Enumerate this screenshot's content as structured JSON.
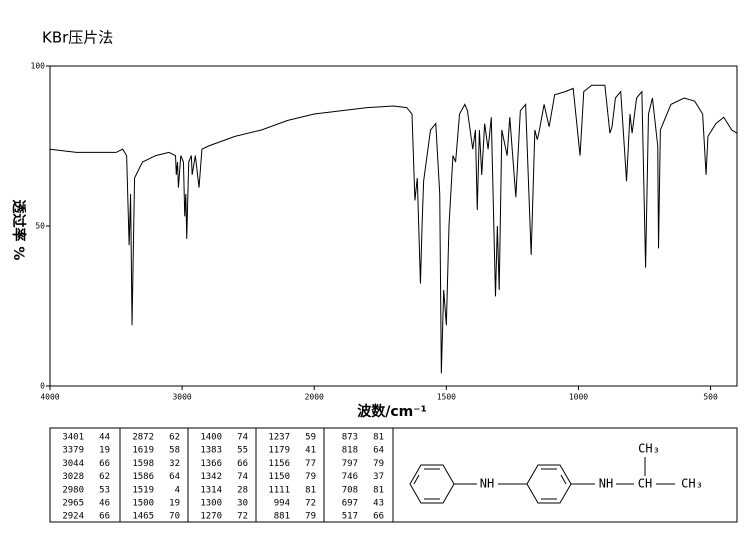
{
  "chart_data": {
    "type": "line",
    "title": "KBr压片法",
    "x_label": "波数/cm⁻¹",
    "y_label": "透过率 %",
    "xlim": [
      4000,
      400
    ],
    "xticks": [
      4000,
      3000,
      2000,
      1500,
      1000,
      500
    ],
    "ylim": [
      0,
      100
    ],
    "yticks": [
      0,
      50,
      100
    ],
    "color": "#000000",
    "x": [
      4000,
      3800,
      3600,
      3500,
      3450,
      3420,
      3401,
      3390,
      3379,
      3360,
      3300,
      3200,
      3100,
      3050,
      3044,
      3035,
      3028,
      3010,
      2990,
      2980,
      2972,
      2965,
      2950,
      2930,
      2924,
      2900,
      2872,
      2850,
      2800,
      2600,
      2400,
      2200,
      2000,
      1800,
      1700,
      1650,
      1630,
      1619,
      1610,
      1598,
      1592,
      1586,
      1560,
      1540,
      1525,
      1519,
      1510,
      1500,
      1490,
      1475,
      1465,
      1450,
      1430,
      1420,
      1400,
      1390,
      1383,
      1375,
      1366,
      1355,
      1342,
      1330,
      1314,
      1307,
      1300,
      1290,
      1270,
      1260,
      1237,
      1220,
      1200,
      1179,
      1165,
      1156,
      1150,
      1130,
      1111,
      1090,
      1050,
      1020,
      994,
      980,
      950,
      900,
      881,
      873,
      860,
      840,
      818,
      805,
      797,
      780,
      760,
      746,
      735,
      720,
      708,
      700,
      697,
      690,
      650,
      600,
      560,
      530,
      517,
      510,
      480,
      450,
      420,
      400
    ],
    "values": [
      74,
      73,
      73,
      73,
      74,
      72,
      44,
      60,
      19,
      65,
      70,
      72,
      73,
      72,
      66,
      70,
      62,
      72,
      70,
      53,
      60,
      46,
      70,
      72,
      66,
      72,
      62,
      74,
      75,
      78,
      80,
      83,
      85,
      87,
      87.5,
      87,
      85,
      58,
      65,
      32,
      50,
      64,
      80,
      82,
      60,
      4,
      30,
      19,
      50,
      72,
      70,
      85,
      88,
      86,
      74,
      80,
      55,
      80,
      66,
      82,
      74,
      84,
      28,
      50,
      30,
      80,
      72,
      84,
      59,
      86,
      88,
      41,
      80,
      77,
      79,
      88,
      81,
      91,
      92,
      93,
      72,
      92,
      94,
      94,
      79,
      81,
      90,
      92,
      64,
      85,
      79,
      90,
      92,
      37,
      85,
      90,
      81,
      75,
      43,
      80,
      88,
      90,
      89,
      85,
      66,
      78,
      82,
      84,
      80,
      79
    ]
  },
  "peak_table": [
    [
      [
        "3401",
        "44"
      ],
      [
        "3379",
        "19"
      ],
      [
        "3044",
        "66"
      ],
      [
        "3028",
        "62"
      ],
      [
        "2980",
        "53"
      ],
      [
        "2965",
        "46"
      ],
      [
        "2924",
        "66"
      ]
    ],
    [
      [
        "2872",
        "62"
      ],
      [
        "1619",
        "58"
      ],
      [
        "1598",
        "32"
      ],
      [
        "1586",
        "64"
      ],
      [
        "1519",
        "4"
      ],
      [
        "1500",
        "19"
      ],
      [
        "1465",
        "70"
      ]
    ],
    [
      [
        "1400",
        "74"
      ],
      [
        "1383",
        "55"
      ],
      [
        "1366",
        "66"
      ],
      [
        "1342",
        "74"
      ],
      [
        "1314",
        "28"
      ],
      [
        "1300",
        "30"
      ],
      [
        "1270",
        "72"
      ]
    ],
    [
      [
        "1237",
        "59"
      ],
      [
        "1179",
        "41"
      ],
      [
        "1156",
        "77"
      ],
      [
        "1150",
        "79"
      ],
      [
        "1111",
        "81"
      ],
      [
        "994",
        "72"
      ],
      [
        "881",
        "79"
      ]
    ],
    [
      [
        "873",
        "81"
      ],
      [
        "818",
        "64"
      ],
      [
        "797",
        "79"
      ],
      [
        "746",
        "37"
      ],
      [
        "708",
        "81"
      ],
      [
        "697",
        "43"
      ],
      [
        "517",
        "66"
      ]
    ]
  ],
  "structure": {
    "labels": [
      "NH",
      "NH",
      "CH",
      "CH₃",
      "CH₃"
    ]
  }
}
